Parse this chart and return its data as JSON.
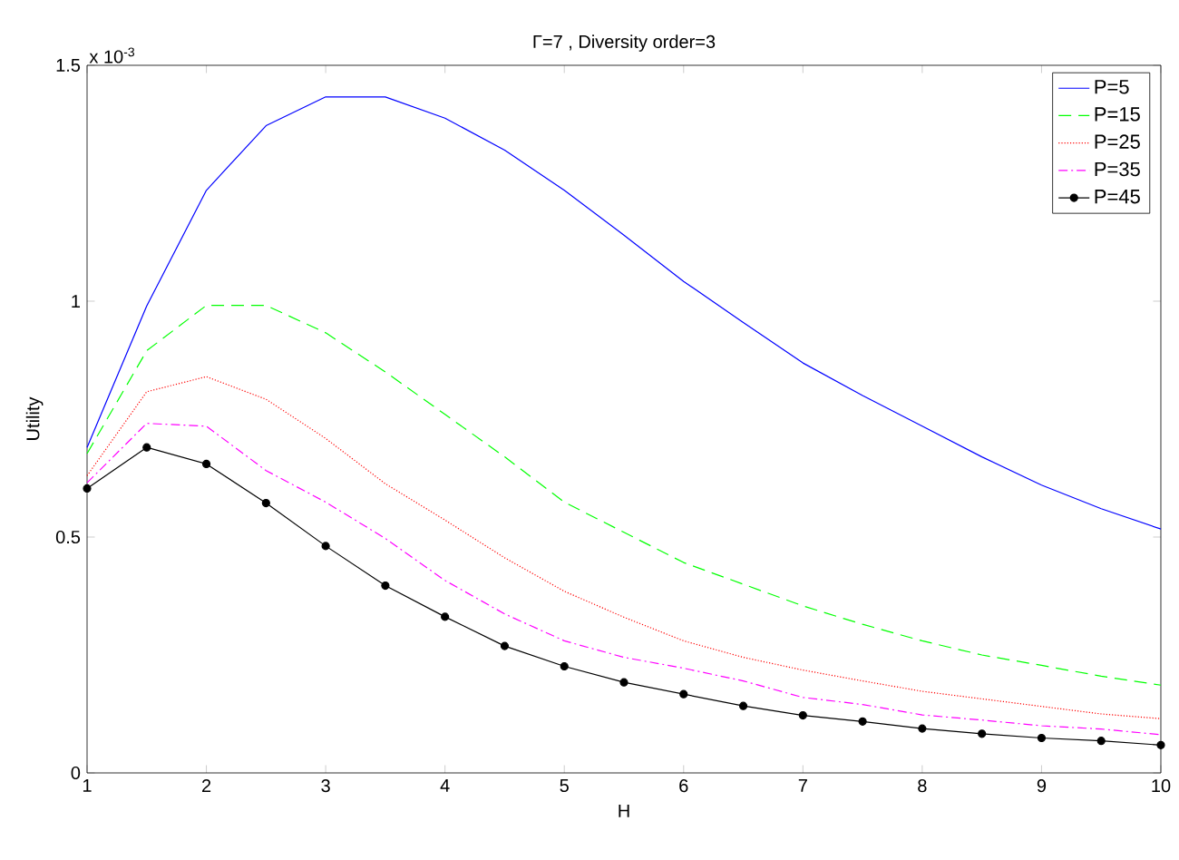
{
  "chart_data": {
    "type": "line",
    "title": "Γ=7 , Diversity order=3",
    "xlabel": "H",
    "ylabel": "Utility",
    "annotations": [
      "x 10$^{-3}$"
    ],
    "x": [
      1,
      1.5,
      2,
      2.5,
      3,
      3.5,
      4,
      4.5,
      5,
      5.5,
      6,
      6.5,
      7,
      7.5,
      8,
      8.5,
      9,
      9.5,
      10
    ],
    "series": [
      {
        "name": "P=5",
        "color": "#0000ff",
        "line_style": "solid",
        "marker": "none",
        "values": [
          0.69,
          0.99,
          1.235,
          1.372,
          1.433,
          1.433,
          1.388,
          1.32,
          1.235,
          1.14,
          1.042,
          0.955,
          0.869,
          0.8,
          0.735,
          0.67,
          0.61,
          0.56,
          0.517
        ]
      },
      {
        "name": "P=15",
        "color": "#00ff00",
        "line_style": "dashed",
        "marker": "none",
        "values": [
          0.677,
          0.895,
          0.991,
          0.991,
          0.933,
          0.85,
          0.76,
          0.67,
          0.574,
          0.51,
          0.446,
          0.4,
          0.354,
          0.315,
          0.28,
          0.25,
          0.228,
          0.205,
          0.186
        ]
      },
      {
        "name": "P=25",
        "color": "#ff0000",
        "line_style": "dotted",
        "marker": "none",
        "values": [
          0.63,
          0.808,
          0.84,
          0.792,
          0.709,
          0.613,
          0.536,
          0.456,
          0.385,
          0.33,
          0.28,
          0.245,
          0.218,
          0.195,
          0.173,
          0.157,
          0.141,
          0.125,
          0.115
        ]
      },
      {
        "name": "P=35",
        "color": "#ff00ff",
        "line_style": "dashdot",
        "marker": "none",
        "values": [
          0.615,
          0.741,
          0.735,
          0.641,
          0.574,
          0.497,
          0.408,
          0.337,
          0.28,
          0.245,
          0.222,
          0.195,
          0.16,
          0.145,
          0.123,
          0.112,
          0.1,
          0.093,
          0.081
        ]
      },
      {
        "name": "P=45",
        "color": "#000000",
        "line_style": "solid",
        "marker": "circle",
        "values": [
          0.603,
          0.69,
          0.655,
          0.572,
          0.481,
          0.397,
          0.331,
          0.269,
          0.226,
          0.192,
          0.167,
          0.142,
          0.122,
          0.109,
          0.094,
          0.083,
          0.074,
          0.068,
          0.059
        ]
      }
    ],
    "xlim": [
      1,
      10
    ],
    "ylim": [
      0,
      1.5
    ],
    "xticks": [
      1,
      2,
      3,
      4,
      5,
      6,
      7,
      8,
      9,
      10
    ],
    "yticks": [
      0,
      0.5,
      1,
      1.5
    ],
    "grid": false,
    "legend": "top right"
  }
}
